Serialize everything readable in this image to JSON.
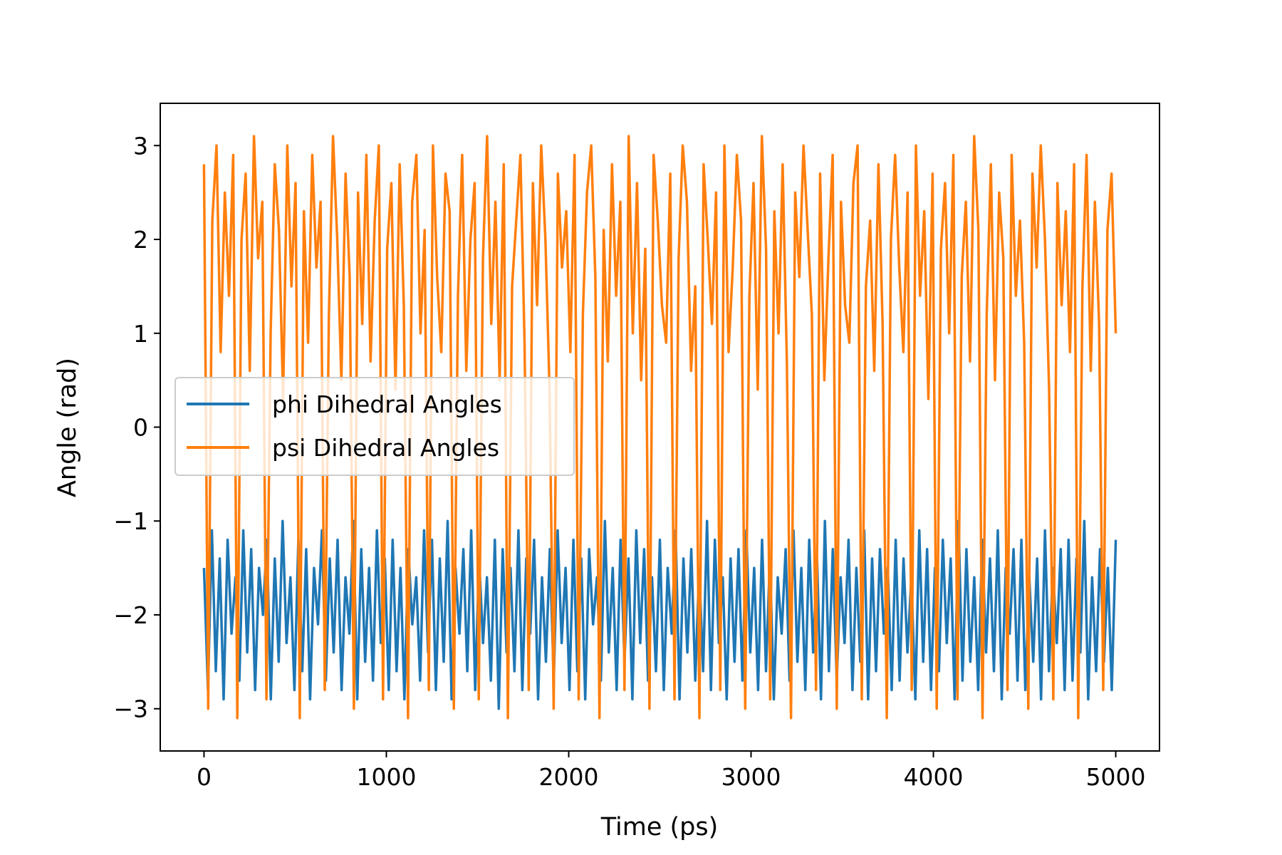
{
  "chart_data": {
    "type": "line",
    "title": "",
    "xlabel": "Time (ps)",
    "ylabel": "Angle (rad)",
    "xlim": [
      -240,
      5240
    ],
    "ylim": [
      -3.45,
      3.45
    ],
    "x_ticks": [
      0,
      1000,
      2000,
      3000,
      4000,
      5000
    ],
    "x_tick_labels": [
      "0",
      "1000",
      "2000",
      "3000",
      "4000",
      "5000"
    ],
    "y_ticks": [
      -3,
      -2,
      -1,
      0,
      1,
      2,
      3
    ],
    "y_tick_labels": [
      "−3",
      "−2",
      "−1",
      "0",
      "1",
      "2",
      "3"
    ],
    "grid": false,
    "legend_position": "center-left",
    "series": [
      {
        "name": "phi Dihedral Angles",
        "color": "#1f77b4",
        "x_start": 0,
        "x_end": 5000,
        "values": [
          -1.5,
          -2.8,
          -1.1,
          -2.6,
          -1.4,
          -2.9,
          -1.2,
          -2.2,
          -1.6,
          -2.7,
          -1.1,
          -2.4,
          -1.3,
          -2.8,
          -1.5,
          -2.0,
          -1.2,
          -2.9,
          -1.4,
          -2.5,
          -1.0,
          -2.3,
          -1.6,
          -2.8,
          -1.2,
          -2.6,
          -1.3,
          -2.9,
          -1.5,
          -2.1,
          -1.1,
          -2.7,
          -1.4,
          -2.4,
          -1.2,
          -2.8,
          -1.6,
          -2.2,
          -1.0,
          -2.9,
          -1.3,
          -2.5,
          -1.5,
          -2.7,
          -1.1,
          -2.3,
          -1.4,
          -2.8,
          -1.2,
          -2.6,
          -1.5,
          -2.9,
          -1.3,
          -2.1,
          -1.6,
          -2.7,
          -1.1,
          -2.4,
          -1.2,
          -2.8,
          -1.4,
          -2.5,
          -1.0,
          -2.9,
          -1.5,
          -2.2,
          -1.3,
          -2.6,
          -1.1,
          -2.8,
          -1.4,
          -2.3,
          -1.6,
          -2.7,
          -1.2,
          -3.0,
          -1.3,
          -2.4,
          -1.5,
          -2.6,
          -1.1,
          -2.8,
          -1.4,
          -2.2,
          -1.2,
          -2.9,
          -1.6,
          -2.5,
          -1.3,
          -2.7,
          -1.1,
          -2.3,
          -1.5,
          -2.8,
          -1.2,
          -2.6,
          -1.4,
          -2.9,
          -1.3,
          -2.1,
          -1.6,
          -2.7,
          -1.0,
          -2.4,
          -1.5,
          -2.8,
          -1.2,
          -2.5,
          -1.4,
          -2.9,
          -1.1,
          -2.3,
          -1.3,
          -2.7,
          -1.6,
          -2.6,
          -1.2,
          -2.8,
          -1.5,
          -2.2,
          -1.1,
          -2.9,
          -1.4,
          -2.4,
          -1.3,
          -2.7,
          -1.5,
          -2.6,
          -1.0,
          -2.8,
          -1.2,
          -2.3,
          -1.6,
          -2.9,
          -1.4,
          -2.5,
          -1.3,
          -2.7,
          -1.1,
          -2.4,
          -1.5,
          -2.8,
          -1.2,
          -2.6,
          -1.4,
          -2.9,
          -1.6,
          -2.2,
          -1.3,
          -2.7,
          -1.1,
          -2.5,
          -1.5,
          -2.8,
          -1.2,
          -2.4,
          -1.4,
          -2.9,
          -1.0,
          -2.6,
          -1.3,
          -2.7,
          -1.6,
          -2.3,
          -1.2,
          -2.8,
          -1.5,
          -2.5,
          -1.1,
          -2.9,
          -1.4,
          -2.6,
          -1.3,
          -2.2,
          -1.5,
          -2.8,
          -1.2,
          -2.7,
          -1.4,
          -2.4,
          -1.6,
          -2.9,
          -1.1,
          -2.5,
          -1.3,
          -2.8,
          -1.5,
          -2.6,
          -1.2,
          -2.3,
          -1.4,
          -2.9,
          -1.0,
          -2.7,
          -1.3,
          -2.5,
          -1.6,
          -2.8,
          -1.2,
          -2.4,
          -1.4,
          -2.6,
          -1.1,
          -2.9,
          -1.5,
          -2.2,
          -1.3,
          -2.7,
          -1.2,
          -2.8,
          -1.6,
          -2.5,
          -1.4,
          -2.9,
          -1.1,
          -2.6,
          -1.5,
          -2.3,
          -1.3,
          -2.8,
          -1.2,
          -2.7,
          -1.4,
          -2.4,
          -1.0,
          -2.9,
          -1.6,
          -2.6,
          -1.3,
          -2.5,
          -1.5,
          -2.8,
          -1.2
        ]
      },
      {
        "name": "psi Dihedral Angles",
        "color": "#ff7f0e",
        "x_start": 0,
        "x_end": 5000,
        "values": [
          2.8,
          -3.0,
          2.2,
          3.0,
          0.8,
          2.5,
          1.4,
          2.9,
          -3.1,
          2.0,
          2.7,
          0.6,
          3.1,
          1.8,
          2.4,
          -2.9,
          1.0,
          2.8,
          2.1,
          0.3,
          3.0,
          1.5,
          2.6,
          -3.1,
          2.3,
          0.9,
          2.9,
          1.7,
          2.4,
          -2.8,
          1.2,
          3.1,
          2.0,
          0.5,
          2.7,
          1.6,
          -3.0,
          2.5,
          1.1,
          2.9,
          0.7,
          2.2,
          3.0,
          -2.9,
          1.9,
          2.6,
          0.4,
          2.8,
          1.3,
          -3.1,
          2.4,
          2.9,
          1.0,
          2.1,
          -2.8,
          3.0,
          1.6,
          0.8,
          2.7,
          2.3,
          -3.0,
          1.4,
          2.9,
          0.6,
          2.0,
          2.6,
          -2.9,
          1.8,
          3.1,
          1.1,
          2.4,
          0.5,
          2.8,
          -3.1,
          1.5,
          2.2,
          2.9,
          0.9,
          -2.8,
          2.6,
          1.3,
          3.0,
          2.0,
          0.4,
          -3.0,
          2.7,
          1.7,
          2.3,
          0.8,
          2.9,
          -2.9,
          1.2,
          2.5,
          3.0,
          1.6,
          -3.1,
          2.1,
          0.7,
          2.8,
          1.4,
          2.4,
          -2.8,
          3.1,
          1.0,
          2.6,
          0.5,
          1.9,
          -3.0,
          2.9,
          2.2,
          1.3,
          0.9,
          2.7,
          -2.9,
          1.8,
          3.0,
          2.4,
          0.6,
          1.5,
          -3.1,
          2.8,
          2.0,
          1.1,
          2.5,
          -2.8,
          3.0,
          0.8,
          1.7,
          2.9,
          2.2,
          -3.0,
          1.4,
          2.6,
          0.4,
          3.1,
          1.9,
          -2.9,
          2.3,
          1.0,
          2.8,
          0.7,
          -3.1,
          2.5,
          1.6,
          3.0,
          2.1,
          1.2,
          -2.8,
          2.7,
          0.5,
          1.8,
          2.9,
          -3.0,
          2.4,
          1.3,
          0.9,
          2.6,
          3.0,
          -2.9,
          1.5,
          2.2,
          0.6,
          2.8,
          1.1,
          -3.1,
          2.0,
          2.9,
          1.7,
          0.8,
          2.5,
          -2.8,
          3.0,
          1.4,
          2.3,
          0.3,
          2.7,
          -3.0,
          1.9,
          2.6,
          1.0,
          2.9,
          -2.9,
          1.6,
          2.4,
          0.7,
          3.1,
          2.1,
          -3.1,
          1.2,
          2.8,
          0.5,
          2.5,
          1.8,
          -2.8,
          2.9,
          1.4,
          2.2,
          0.9,
          -3.0,
          2.7,
          1.7,
          3.0,
          2.0,
          0.4,
          -2.9,
          2.6,
          1.3,
          2.3,
          0.8,
          2.8,
          -3.1,
          1.5,
          2.9,
          0.6,
          2.4,
          1.1,
          -2.8,
          2.1,
          2.7,
          1.0
        ]
      }
    ]
  }
}
